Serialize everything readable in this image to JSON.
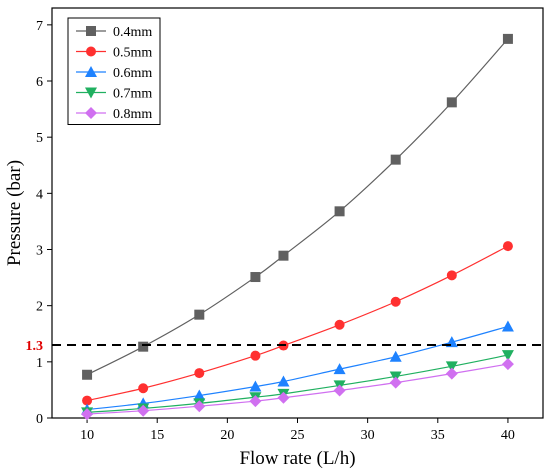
{
  "chart_data": {
    "type": "line",
    "xlabel": "Flow rate (L/h)",
    "ylabel": "Pressure (bar)",
    "xlim": [
      7.5,
      42.5
    ],
    "ylim": [
      0,
      7.3
    ],
    "x_ticks": [
      "10",
      "15",
      "20",
      "25",
      "30",
      "35",
      "40"
    ],
    "y_ticks": [
      "0",
      "1",
      "2",
      "3",
      "4",
      "5",
      "6",
      "7"
    ],
    "grid": false,
    "legend_position": "top-left",
    "x": [
      10,
      14,
      18,
      22,
      24,
      28,
      32,
      36,
      40
    ],
    "series": [
      {
        "name": "0.4mm",
        "marker": "square",
        "color": "#606060",
        "values": [
          0.77,
          1.27,
          1.84,
          2.51,
          2.89,
          3.68,
          4.6,
          5.62,
          6.75
        ]
      },
      {
        "name": "0.5mm",
        "marker": "circle",
        "color": "#ff3030",
        "values": [
          0.31,
          0.53,
          0.8,
          1.11,
          1.29,
          1.66,
          2.07,
          2.54,
          3.06
        ]
      },
      {
        "name": "0.6mm",
        "marker": "triangle-up",
        "color": "#1e82ff",
        "values": [
          0.15,
          0.26,
          0.4,
          0.56,
          0.65,
          0.87,
          1.09,
          1.35,
          1.63
        ]
      },
      {
        "name": "0.7mm",
        "marker": "triangle-down",
        "color": "#20b060",
        "values": [
          0.1,
          0.17,
          0.26,
          0.37,
          0.43,
          0.58,
          0.74,
          0.92,
          1.12
        ]
      },
      {
        "name": "0.8mm",
        "marker": "diamond",
        "color": "#d070f0",
        "values": [
          0.07,
          0.13,
          0.21,
          0.3,
          0.36,
          0.49,
          0.63,
          0.79,
          0.96
        ]
      }
    ],
    "reference_line": {
      "value": 1.3,
      "label": "1.3",
      "label_color": "#e00000"
    }
  }
}
